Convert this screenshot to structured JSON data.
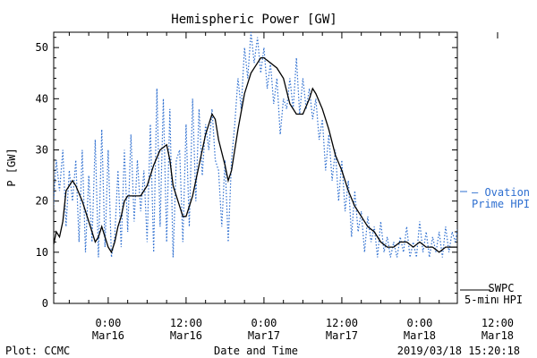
{
  "chart_data": {
    "type": "line",
    "title": "Hemispheric Power [GW]",
    "xlabel": "Date and Time",
    "ylabel": "P [GW]",
    "ylim": [
      0,
      53
    ],
    "xlim_hours": [
      -8.4,
      53.8
    ],
    "yticks": [
      0,
      10,
      20,
      30,
      40,
      50
    ],
    "xticks": [
      {
        "hour": 0,
        "time": "0:00",
        "date": "Mar16"
      },
      {
        "hour": 12,
        "time": "12:00",
        "date": "Mar16"
      },
      {
        "hour": 24,
        "time": "0:00",
        "date": "Mar17"
      },
      {
        "hour": 36,
        "time": "12:00",
        "date": "Mar17"
      },
      {
        "hour": 48,
        "time": "0:00",
        "date": "Mar18"
      },
      {
        "hour": 60,
        "time": "12:00",
        "date": "Mar18"
      }
    ],
    "grid": false,
    "series": [
      {
        "name": "SWPC 5-min HPI",
        "legend_line1": "SWPC",
        "legend_line2": "5-min HPI",
        "style": "solid",
        "color": "#000000",
        "points": [
          [
            -8.5,
            11
          ],
          [
            -8,
            14
          ],
          [
            -7.5,
            13
          ],
          [
            -7,
            16
          ],
          [
            -6.5,
            22
          ],
          [
            -6,
            23
          ],
          [
            -5.5,
            24
          ],
          [
            -5,
            23
          ],
          [
            -4,
            20
          ],
          [
            -3,
            16
          ],
          [
            -2,
            12
          ],
          [
            -1.5,
            13
          ],
          [
            -1,
            15
          ],
          [
            -0.5,
            13
          ],
          [
            0,
            11
          ],
          [
            0.5,
            10
          ],
          [
            1,
            12
          ],
          [
            1.5,
            15
          ],
          [
            2,
            17
          ],
          [
            2.5,
            20
          ],
          [
            3,
            21
          ],
          [
            4,
            21
          ],
          [
            5,
            21
          ],
          [
            6,
            23
          ],
          [
            7,
            27
          ],
          [
            8,
            30
          ],
          [
            9,
            31
          ],
          [
            9.5,
            28
          ],
          [
            10,
            23
          ],
          [
            11,
            19
          ],
          [
            11.5,
            17
          ],
          [
            12,
            17
          ],
          [
            13,
            21
          ],
          [
            14,
            27
          ],
          [
            15,
            33
          ],
          [
            16,
            37
          ],
          [
            16.5,
            36
          ],
          [
            17,
            32
          ],
          [
            18,
            27
          ],
          [
            18.5,
            24
          ],
          [
            19,
            26
          ],
          [
            20,
            34
          ],
          [
            21,
            41
          ],
          [
            22,
            45
          ],
          [
            23,
            47
          ],
          [
            23.5,
            48
          ],
          [
            24,
            48
          ],
          [
            25,
            47
          ],
          [
            26,
            46
          ],
          [
            27,
            44
          ],
          [
            28,
            39
          ],
          [
            29,
            37
          ],
          [
            30,
            37
          ],
          [
            31,
            40
          ],
          [
            31.5,
            42
          ],
          [
            32,
            41
          ],
          [
            33,
            38
          ],
          [
            34,
            34
          ],
          [
            35,
            29
          ],
          [
            36,
            26
          ],
          [
            37,
            22
          ],
          [
            38,
            19
          ],
          [
            39,
            17
          ],
          [
            40,
            15
          ],
          [
            41,
            14
          ],
          [
            42,
            12
          ],
          [
            43,
            11
          ],
          [
            44,
            11
          ],
          [
            45,
            12
          ],
          [
            46,
            12
          ],
          [
            47,
            11
          ],
          [
            48,
            12
          ],
          [
            49,
            11
          ],
          [
            50,
            11
          ],
          [
            51,
            10
          ],
          [
            52,
            11
          ],
          [
            53,
            11
          ],
          [
            54,
            11
          ]
        ]
      },
      {
        "name": "Ovation Prime HPI",
        "legend_line1": "— Ovation",
        "legend_line2": "Prime HPI",
        "style": "dotted",
        "color": "#2e6fd0",
        "points": [
          [
            -8.5,
            18
          ],
          [
            -8,
            28
          ],
          [
            -7.5,
            22
          ],
          [
            -7,
            30
          ],
          [
            -6.5,
            15
          ],
          [
            -6,
            26
          ],
          [
            -5.5,
            20
          ],
          [
            -5,
            28
          ],
          [
            -4.5,
            12
          ],
          [
            -4,
            30
          ],
          [
            -3.5,
            10
          ],
          [
            -3,
            25
          ],
          [
            -2.5,
            12
          ],
          [
            -2,
            32
          ],
          [
            -1.5,
            9
          ],
          [
            -1,
            34
          ],
          [
            -0.5,
            11
          ],
          [
            0,
            30
          ],
          [
            0.5,
            9
          ],
          [
            1,
            13
          ],
          [
            1.5,
            26
          ],
          [
            2,
            11
          ],
          [
            2.5,
            30
          ],
          [
            3,
            14
          ],
          [
            3.5,
            33
          ],
          [
            4,
            16
          ],
          [
            4.5,
            28
          ],
          [
            5,
            18
          ],
          [
            5.5,
            26
          ],
          [
            6,
            12
          ],
          [
            6.5,
            35
          ],
          [
            7,
            10
          ],
          [
            7.5,
            42
          ],
          [
            8,
            15
          ],
          [
            8.5,
            40
          ],
          [
            9,
            12
          ],
          [
            9.5,
            38
          ],
          [
            10,
            9
          ],
          [
            10.5,
            28
          ],
          [
            11,
            30
          ],
          [
            11.5,
            12
          ],
          [
            12,
            35
          ],
          [
            12.5,
            15
          ],
          [
            13,
            40
          ],
          [
            13.5,
            20
          ],
          [
            14,
            38
          ],
          [
            14.5,
            25
          ],
          [
            15,
            35
          ],
          [
            15.5,
            30
          ],
          [
            16,
            38
          ],
          [
            16.5,
            28
          ],
          [
            17,
            26
          ],
          [
            17.5,
            15
          ],
          [
            18,
            28
          ],
          [
            18.5,
            12
          ],
          [
            19,
            28
          ],
          [
            19.5,
            35
          ],
          [
            20,
            44
          ],
          [
            20.5,
            38
          ],
          [
            21,
            50
          ],
          [
            21.5,
            44
          ],
          [
            22,
            53
          ],
          [
            22.5,
            47
          ],
          [
            23,
            52
          ],
          [
            23.5,
            45
          ],
          [
            24,
            50
          ],
          [
            24.5,
            42
          ],
          [
            25,
            47
          ],
          [
            25.5,
            39
          ],
          [
            26,
            44
          ],
          [
            26.5,
            33
          ],
          [
            27,
            40
          ],
          [
            27.5,
            38
          ],
          [
            28,
            44
          ],
          [
            28.5,
            38
          ],
          [
            29,
            48
          ],
          [
            29.5,
            37
          ],
          [
            30,
            44
          ],
          [
            30.5,
            38
          ],
          [
            31,
            42
          ],
          [
            31.5,
            36
          ],
          [
            32,
            40
          ],
          [
            32.5,
            32
          ],
          [
            33,
            36
          ],
          [
            33.5,
            26
          ],
          [
            34,
            33
          ],
          [
            34.5,
            24
          ],
          [
            35,
            30
          ],
          [
            35.5,
            20
          ],
          [
            36,
            28
          ],
          [
            36.5,
            18
          ],
          [
            37,
            24
          ],
          [
            37.5,
            13
          ],
          [
            38,
            22
          ],
          [
            38.5,
            14
          ],
          [
            39,
            18
          ],
          [
            39.5,
            10
          ],
          [
            40,
            17
          ],
          [
            40.5,
            12
          ],
          [
            41,
            15
          ],
          [
            41.5,
            9
          ],
          [
            42,
            16
          ],
          [
            42.5,
            10
          ],
          [
            43,
            13
          ],
          [
            43.5,
            9
          ],
          [
            44,
            12
          ],
          [
            44.5,
            9
          ],
          [
            45,
            13
          ],
          [
            45.5,
            10
          ],
          [
            46,
            15
          ],
          [
            46.5,
            9
          ],
          [
            47,
            12
          ],
          [
            47.5,
            9
          ],
          [
            48,
            16
          ],
          [
            48.5,
            10
          ],
          [
            49,
            14
          ],
          [
            49.5,
            9
          ],
          [
            50,
            13
          ],
          [
            50.5,
            10
          ],
          [
            51,
            14
          ],
          [
            51.5,
            9
          ],
          [
            52,
            15
          ],
          [
            52.5,
            10
          ],
          [
            53,
            14
          ],
          [
            53.5,
            12
          ],
          [
            54,
            16
          ]
        ]
      }
    ]
  },
  "footer": {
    "left": "Plot: CCMC",
    "right": "2019/03/18 15:20:18"
  }
}
